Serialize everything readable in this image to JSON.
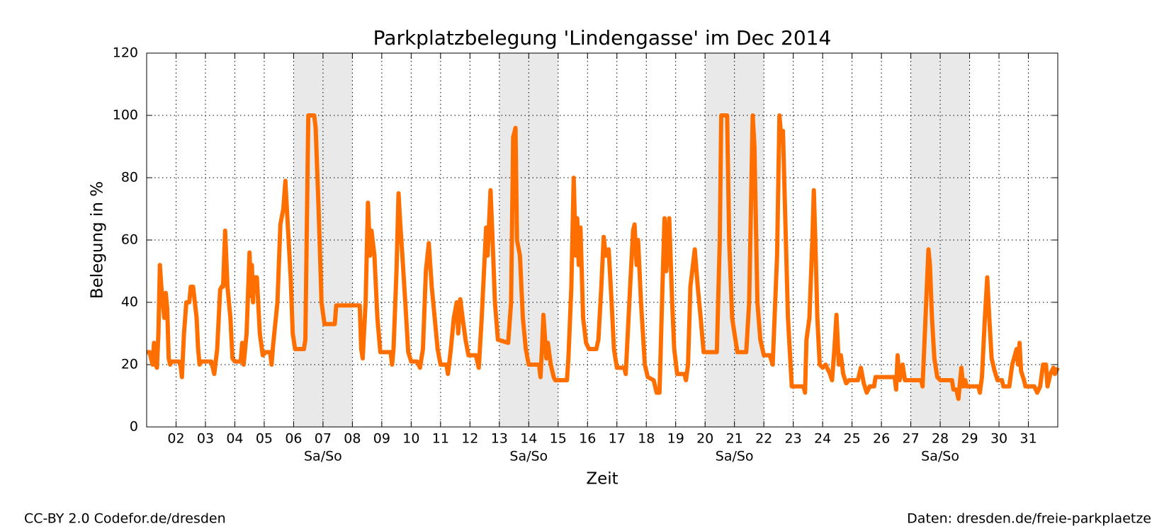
{
  "chart_data": {
    "type": "line",
    "title": "Parkplatzbelegung 'Lindengasse' im Dec 2014",
    "ylabel": "Belegung in %",
    "xlabel": "Zeit",
    "color": "#ff6f00",
    "grid": true,
    "xlim": [
      1,
      32
    ],
    "ylim": [
      0,
      120
    ],
    "yticks": [
      0,
      20,
      40,
      60,
      80,
      100,
      120
    ],
    "xticks": [
      {
        "value": 2,
        "label": "02"
      },
      {
        "value": 3,
        "label": "03"
      },
      {
        "value": 4,
        "label": "04"
      },
      {
        "value": 5,
        "label": "05"
      },
      {
        "value": 6,
        "label": "06"
      },
      {
        "value": 7,
        "label": "07"
      },
      {
        "value": 8,
        "label": "08"
      },
      {
        "value": 9,
        "label": "09"
      },
      10,
      11,
      12,
      13,
      14,
      15,
      16,
      17,
      18,
      19,
      20,
      21,
      22,
      23,
      24,
      25,
      26,
      27,
      28,
      29,
      30,
      31
    ],
    "weekends": [
      [
        6,
        8
      ],
      [
        13,
        15
      ],
      [
        20,
        22
      ],
      [
        27,
        29
      ]
    ],
    "annotations": [
      {
        "x": 7,
        "text": "Sa/So"
      },
      {
        "x": 14,
        "text": "Sa/So"
      },
      {
        "x": 21,
        "text": "Sa/So"
      },
      {
        "x": 28,
        "text": "Sa/So"
      }
    ],
    "x": [
      1.0,
      1.1,
      1.15,
      1.2,
      1.25,
      1.3,
      1.35,
      1.4,
      1.45,
      1.5,
      1.6,
      1.65,
      1.7,
      1.75,
      1.8,
      1.85,
      2.1,
      2.15,
      2.2,
      2.27,
      2.35,
      2.45,
      2.5,
      2.58,
      2.7,
      2.75,
      2.8,
      2.85,
      3.2,
      3.3,
      3.4,
      3.5,
      3.55,
      3.6,
      3.67,
      3.75,
      3.85,
      3.92,
      4.0,
      4.2,
      4.25,
      4.3,
      4.4,
      4.5,
      4.55,
      4.58,
      4.62,
      4.65,
      4.75,
      4.85,
      4.95,
      5.05,
      5.2,
      5.25,
      5.3,
      5.45,
      5.55,
      5.65,
      5.72,
      5.8,
      5.9,
      5.97,
      6.05,
      6.35,
      6.4,
      6.5,
      6.7,
      6.75,
      6.85,
      6.95,
      7.05,
      7.4,
      7.45,
      8.25,
      8.3,
      8.35,
      8.45,
      8.53,
      8.6,
      8.65,
      8.75,
      8.85,
      8.95,
      9.3,
      9.35,
      9.4,
      9.5,
      9.57,
      9.63,
      9.7,
      9.8,
      9.9,
      10.0,
      10.2,
      10.3,
      10.4,
      10.5,
      10.6,
      10.7,
      10.8,
      10.9,
      11.0,
      11.2,
      11.25,
      11.35,
      11.45,
      11.55,
      11.6,
      11.67,
      11.75,
      11.85,
      11.95,
      12.2,
      12.3,
      12.4,
      12.55,
      12.6,
      12.7,
      12.77,
      12.85,
      12.95,
      13.3,
      13.4,
      13.47,
      13.55,
      13.6,
      13.7,
      13.8,
      13.9,
      14.0,
      14.35,
      14.4,
      14.45,
      14.5,
      14.6,
      14.65,
      14.75,
      14.85,
      14.9,
      15.3,
      15.35,
      15.45,
      15.53,
      15.6,
      15.65,
      15.7,
      15.76,
      15.85,
      15.95,
      16.05,
      16.3,
      16.37,
      16.47,
      16.55,
      16.62,
      16.72,
      16.82,
      16.9,
      17.0,
      17.25,
      17.3,
      17.45,
      17.55,
      17.6,
      17.67,
      17.72,
      17.82,
      17.95,
      18.05,
      18.25,
      18.35,
      18.45,
      18.55,
      18.62,
      18.68,
      18.78,
      18.88,
      18.95,
      19.05,
      19.3,
      19.35,
      19.42,
      19.5,
      19.65,
      19.75,
      19.85,
      19.95,
      20.4,
      20.5,
      20.55,
      20.75,
      20.82,
      20.92,
      21.0,
      21.1,
      21.4,
      21.5,
      21.62,
      21.68,
      21.78,
      21.88,
      22.0,
      22.2,
      22.3,
      22.45,
      22.53,
      22.6,
      22.65,
      22.72,
      22.82,
      22.95,
      23.35,
      23.4,
      23.45,
      23.55,
      23.65,
      23.7,
      23.75,
      23.82,
      23.9,
      24.0,
      24.1,
      24.25,
      24.32,
      24.4,
      24.47,
      24.55,
      24.62,
      24.7,
      24.8,
      24.9,
      25.2,
      25.3,
      25.4,
      25.5,
      25.6,
      25.75,
      25.8,
      26.45,
      26.5,
      26.55,
      26.62,
      26.72,
      26.8,
      27.35,
      27.4,
      27.5,
      27.6,
      27.65,
      27.72,
      27.8,
      27.9,
      28.0,
      28.4,
      28.45,
      28.55,
      28.62,
      28.72,
      28.78,
      28.85,
      28.9,
      29.3,
      29.35,
      29.42,
      29.52,
      29.6,
      29.67,
      29.75,
      29.85,
      29.95,
      30.1,
      30.15,
      30.35,
      30.45,
      30.6,
      30.65,
      30.7,
      30.75,
      30.85,
      30.9,
      31.2,
      31.3,
      31.4,
      31.5,
      31.6,
      31.65,
      31.75,
      31.85,
      31.9,
      32.0
    ],
    "values": [
      24,
      24,
      22,
      20,
      27,
      20,
      19,
      30,
      52,
      45,
      35,
      43,
      38,
      22,
      20,
      21,
      21,
      20,
      16,
      30,
      40,
      40,
      45,
      45,
      35,
      25,
      20,
      21,
      21,
      17,
      25,
      44,
      45,
      45,
      63,
      45,
      35,
      22,
      21,
      21,
      27,
      20,
      30,
      56,
      42,
      52,
      40,
      48,
      48,
      30,
      23,
      24,
      24,
      20,
      26,
      40,
      65,
      70,
      79,
      65,
      48,
      30,
      25,
      25,
      28,
      100,
      100,
      96,
      70,
      40,
      33,
      33,
      39,
      39,
      25,
      22,
      40,
      72,
      55,
      63,
      55,
      35,
      24,
      24,
      20,
      25,
      50,
      75,
      65,
      55,
      40,
      24,
      21,
      21,
      19,
      25,
      50,
      59,
      45,
      35,
      25,
      20,
      20,
      17,
      25,
      35,
      40,
      30,
      41,
      35,
      28,
      23,
      23,
      19,
      35,
      64,
      55,
      76,
      60,
      40,
      28,
      27,
      40,
      93,
      96,
      60,
      55,
      35,
      25,
      20,
      20,
      16,
      25,
      36,
      22,
      27,
      20,
      16,
      15,
      15,
      22,
      45,
      80,
      55,
      67,
      52,
      64,
      35,
      27,
      25,
      25,
      28,
      45,
      61,
      55,
      57,
      40,
      25,
      19,
      19,
      17,
      45,
      63,
      65,
      52,
      60,
      40,
      20,
      16,
      15,
      11,
      11,
      45,
      67,
      50,
      67,
      40,
      25,
      17,
      17,
      15,
      20,
      45,
      57,
      45,
      35,
      24,
      24,
      60,
      100,
      100,
      60,
      35,
      30,
      24,
      24,
      40,
      100,
      90,
      40,
      28,
      23,
      23,
      20,
      55,
      100,
      92,
      95,
      70,
      35,
      13,
      13,
      11,
      28,
      35,
      60,
      76,
      60,
      35,
      20,
      19,
      20,
      17,
      15,
      25,
      36,
      20,
      23,
      17,
      14,
      15,
      15,
      19,
      14,
      11,
      13,
      13,
      16,
      16,
      12,
      23,
      15,
      20,
      15,
      15,
      13,
      35,
      57,
      52,
      35,
      22,
      16,
      15,
      15,
      12,
      12,
      9,
      19,
      13,
      15,
      13,
      13,
      11,
      16,
      35,
      48,
      35,
      22,
      18,
      15,
      15,
      13,
      13,
      20,
      25,
      20,
      27,
      18,
      15,
      13,
      13,
      11,
      13,
      20,
      20,
      13,
      17,
      19,
      17,
      19
    ]
  },
  "footer": {
    "license": "CC-BY 2.0 Codefor.de/dresden",
    "source": "Daten: dresden.de/freie-parkplaetze"
  }
}
